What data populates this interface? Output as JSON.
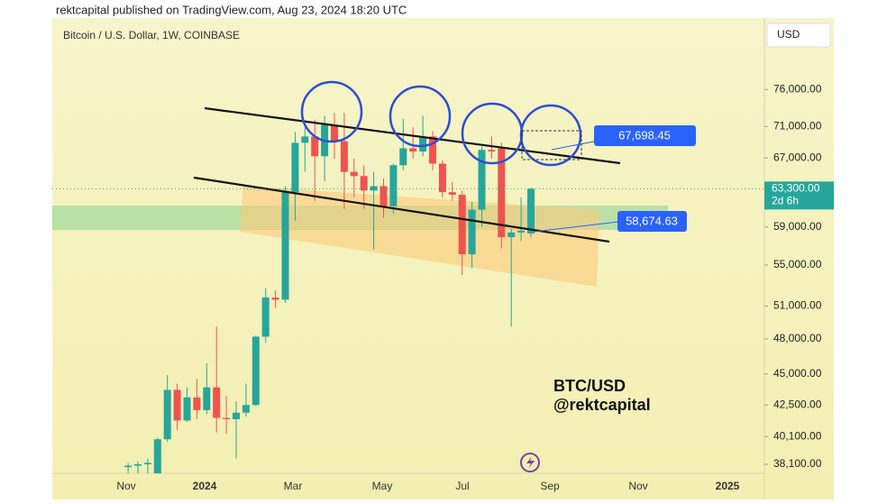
{
  "header": "rektcapital published on TradingView.com, Aug 23, 2024 18:20 UTC",
  "chart_data": {
    "type": "candlestick",
    "title": "Bitcoin / U.S. Dollar, 1W, COINBASE",
    "currency": "USD",
    "log_scale": true,
    "up_color": "#26a69a",
    "down_color": "#ef5350",
    "ylim": [
      37470,
      86700
    ],
    "yticks": [
      {
        "value": 76000,
        "label": "76,000.00"
      },
      {
        "value": 71000,
        "label": "71,000.00"
      },
      {
        "value": 67000,
        "label": "67,000.00"
      },
      {
        "value": 59000,
        "label": "59,000.00"
      },
      {
        "value": 55000,
        "label": "55,000.00"
      },
      {
        "value": 51000,
        "label": "51,000.00"
      },
      {
        "value": 48000,
        "label": "48,000.00"
      },
      {
        "value": 45000,
        "label": "45,000.00"
      },
      {
        "value": 42500,
        "label": "42,500.00"
      },
      {
        "value": 40100,
        "label": "40,100.00"
      },
      {
        "value": 38100,
        "label": "38,100.00"
      }
    ],
    "x_labels": [
      "Nov",
      "2024",
      "Mar",
      "May",
      "Jul",
      "Sep",
      "Nov",
      "2025"
    ],
    "categories": [
      null,
      null,
      null,
      null,
      null,
      null,
      null,
      null,
      null,
      null,
      null,
      null,
      null,
      null,
      null,
      null,
      null,
      null,
      null,
      null,
      null,
      null,
      null,
      null,
      null,
      null,
      null,
      null,
      null,
      null,
      null,
      null,
      null,
      null,
      null,
      null,
      null,
      null,
      null,
      null,
      null,
      null
    ],
    "open": [
      37900,
      38000,
      38100,
      37400,
      39900,
      43700,
      41300,
      43100,
      42100,
      43900,
      41500,
      41400,
      41900,
      42500,
      48200,
      51800,
      51600,
      62900,
      68900,
      69700,
      67200,
      71200,
      69100,
      65300,
      64800,
      63100,
      63600,
      61300,
      66100,
      68200,
      67800,
      69700,
      66300,
      62900,
      62600,
      56100,
      60900,
      68000,
      68200,
      57900,
      58400,
      58300
    ],
    "high": [
      38200,
      38300,
      38500,
      40000,
      44900,
      44200,
      43900,
      44600,
      45900,
      49100,
      43200,
      42800,
      44200,
      48300,
      52700,
      52500,
      63600,
      70300,
      70900,
      71900,
      72400,
      72800,
      72800,
      66900,
      66100,
      65300,
      64500,
      66300,
      72000,
      70900,
      72400,
      70400,
      66700,
      64100,
      63100,
      61800,
      68400,
      69700,
      68900,
      58800,
      62300,
      63400
    ],
    "low": [
      36500,
      36800,
      37000,
      37000,
      39700,
      40600,
      41200,
      41400,
      41800,
      40400,
      40300,
      38500,
      41600,
      42400,
      47700,
      50800,
      51300,
      59700,
      65300,
      61900,
      64200,
      66900,
      61000,
      62300,
      61000,
      56600,
      60000,
      60500,
      65500,
      66900,
      67200,
      65500,
      62300,
      61900,
      54000,
      54700,
      59000,
      66900,
      56700,
      49100,
      57500,
      57900
    ],
    "close": [
      38000,
      38100,
      38200,
      39900,
      43700,
      41300,
      43100,
      42100,
      43900,
      41500,
      41400,
      41900,
      42500,
      48200,
      51800,
      51600,
      62900,
      68900,
      69700,
      67200,
      71200,
      69100,
      65300,
      64800,
      63100,
      63600,
      61300,
      66100,
      68200,
      67800,
      69700,
      66300,
      62900,
      62600,
      56100,
      60900,
      68000,
      67800,
      57900,
      58400,
      58600,
      63300
    ],
    "current_price": {
      "value": 63300,
      "label": "63,300.00"
    },
    "countdown": "2d 6h",
    "annotations": {
      "upper_label": "67,698.45",
      "lower_label": "58,674.63",
      "text_line1": "BTC/USD",
      "text_line2": "@rektcapital"
    }
  }
}
